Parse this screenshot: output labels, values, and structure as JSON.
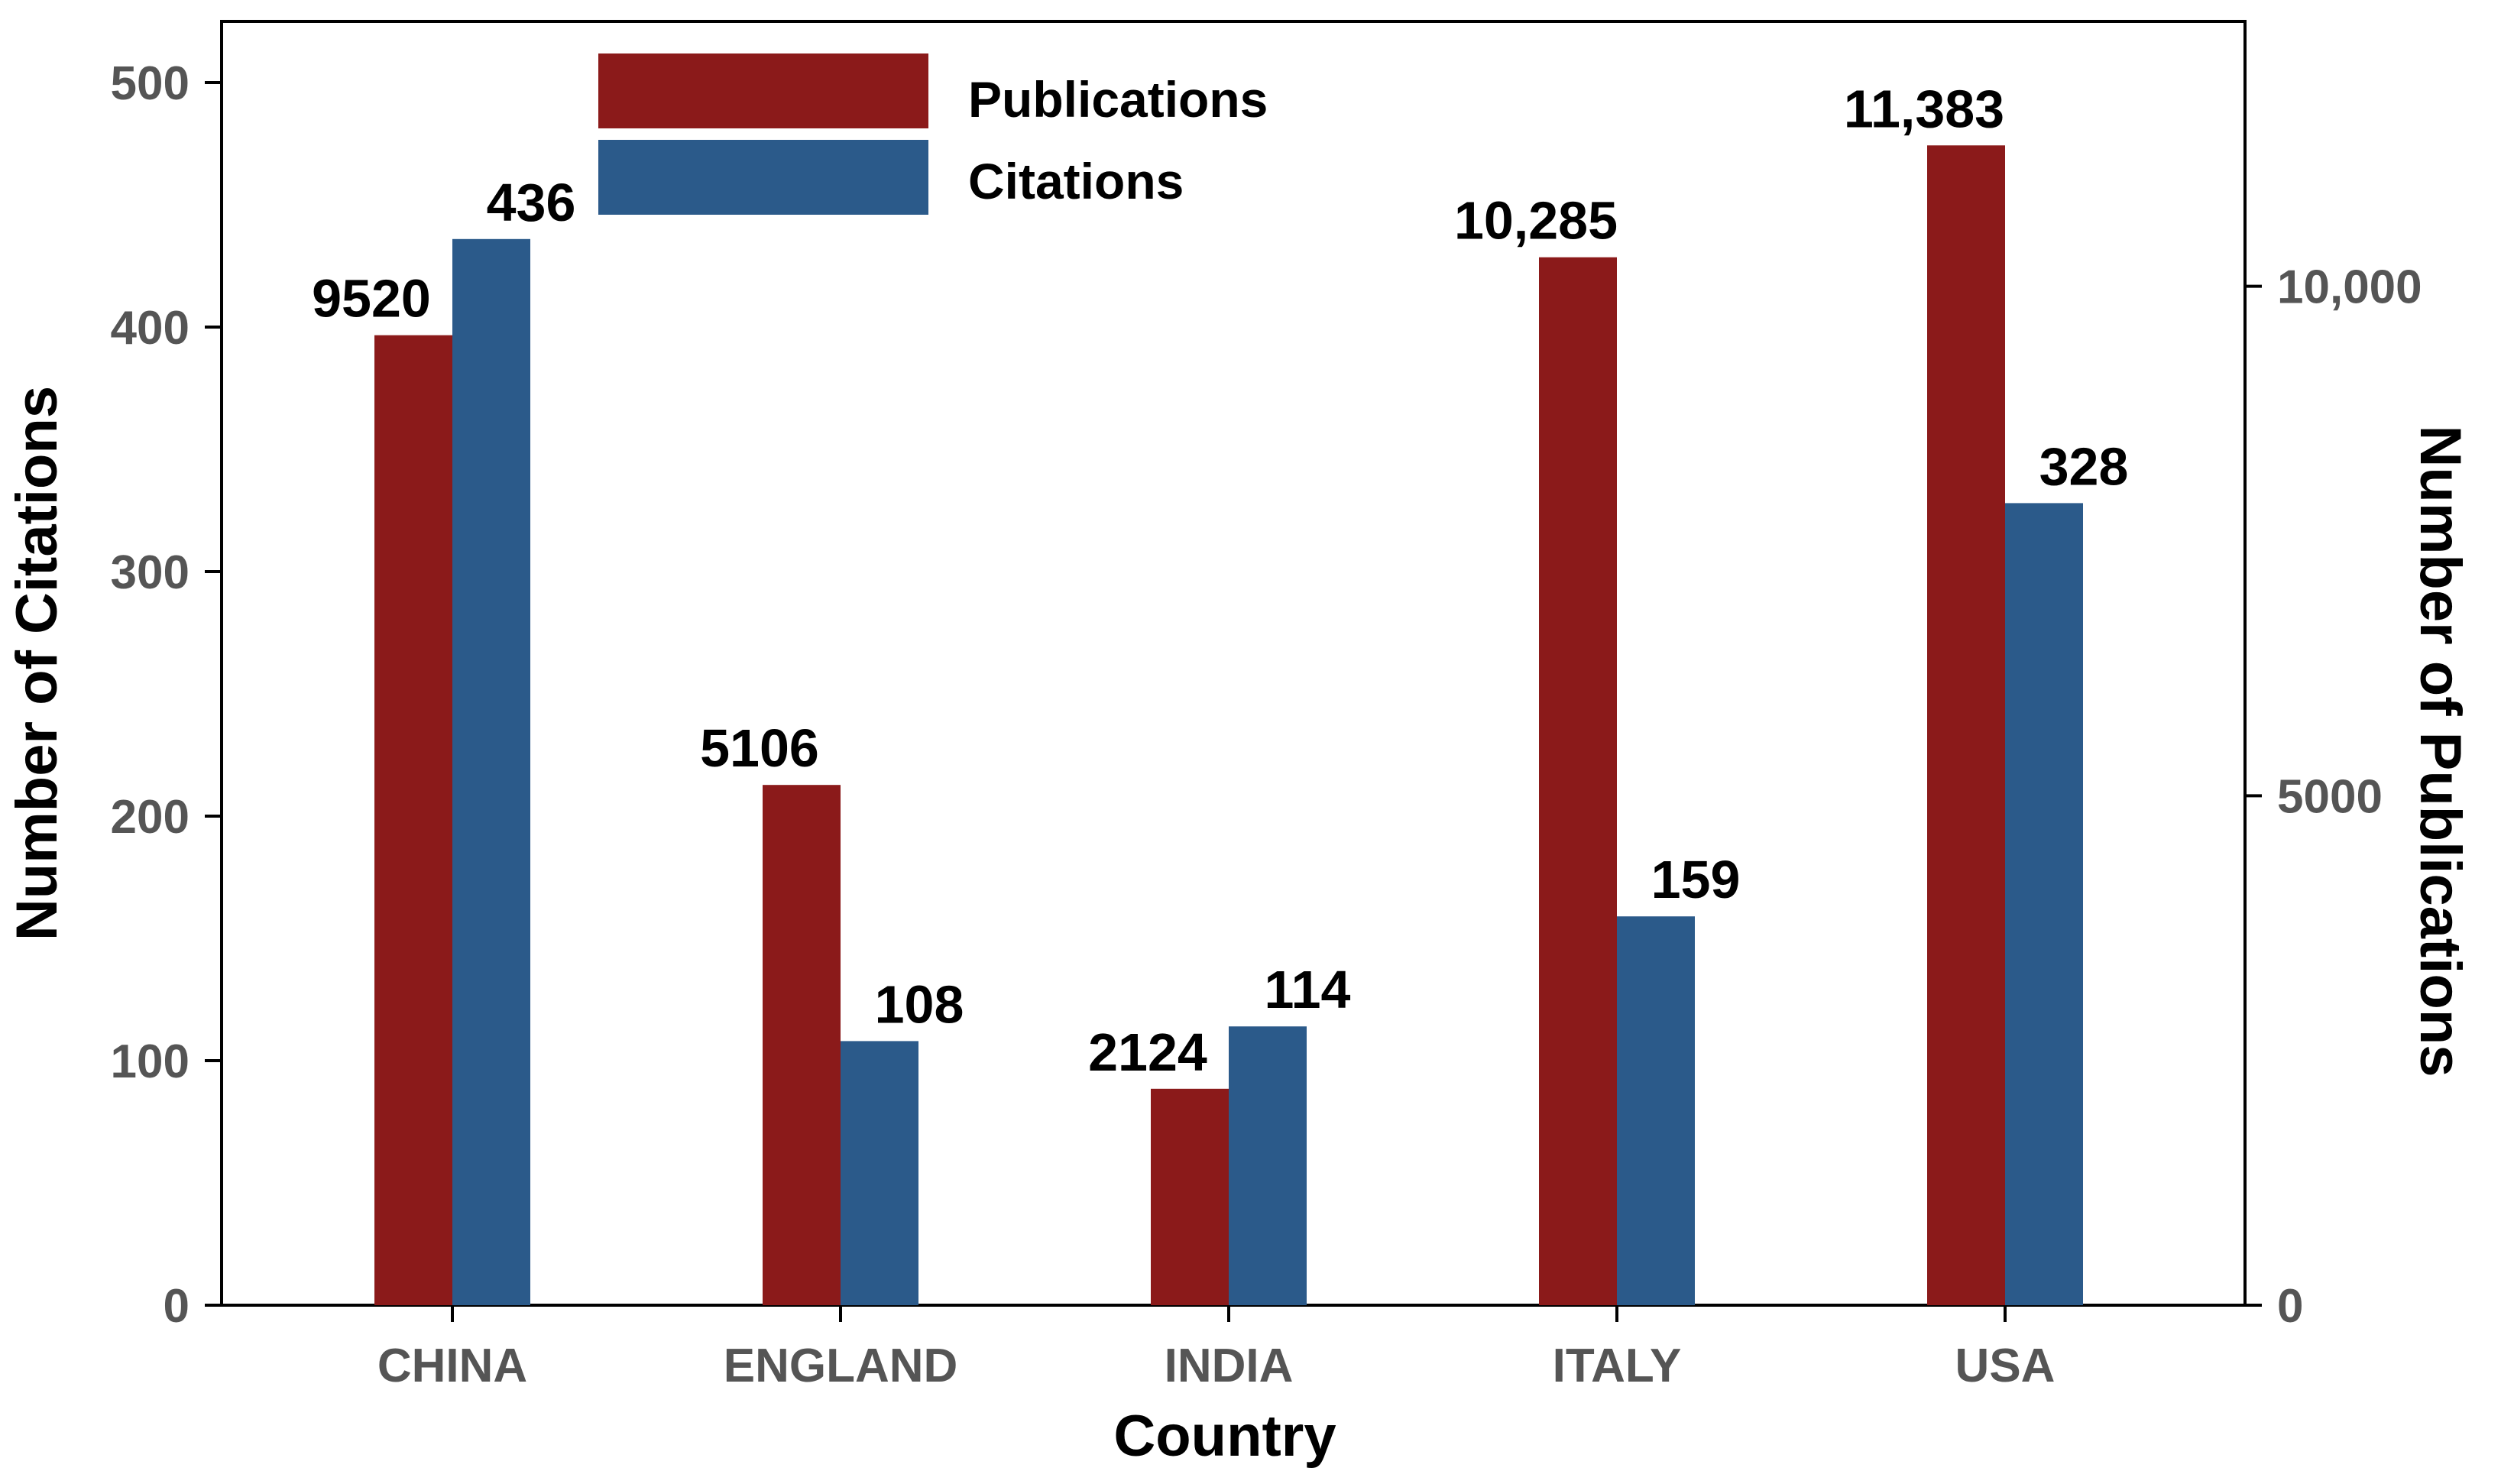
{
  "chart_data": {
    "type": "bar",
    "categories": [
      "CHINA",
      "ENGLAND",
      "INDIA",
      "ITALY",
      "USA"
    ],
    "series": [
      {
        "name": "Publications",
        "axis": "right",
        "values": [
          9520,
          5106,
          2124,
          10285,
          11383
        ],
        "labels": [
          "9520",
          "5106",
          "2124",
          "10,285",
          "11,383"
        ],
        "color": "#8B1A1A"
      },
      {
        "name": "Citations",
        "axis": "left",
        "values": [
          436,
          108,
          114,
          159,
          328
        ],
        "labels": [
          "436",
          "108",
          "114",
          "159",
          "328"
        ],
        "color": "#2B5A8A"
      }
    ],
    "xlabel": "Country",
    "ylabel": "Number of Citations",
    "y2label": "Number of Publications",
    "ylim": [
      0,
      525
    ],
    "y2lim": [
      0,
      12600
    ],
    "yticks": [
      0,
      100,
      200,
      300,
      400,
      500
    ],
    "ytick_labels": [
      "0",
      "100",
      "200",
      "300",
      "400",
      "500"
    ],
    "y2ticks": [
      0,
      5000,
      10000
    ],
    "y2tick_labels": [
      "0",
      "5000",
      "10,000"
    ],
    "grid": false,
    "legend_position": "top-left"
  }
}
